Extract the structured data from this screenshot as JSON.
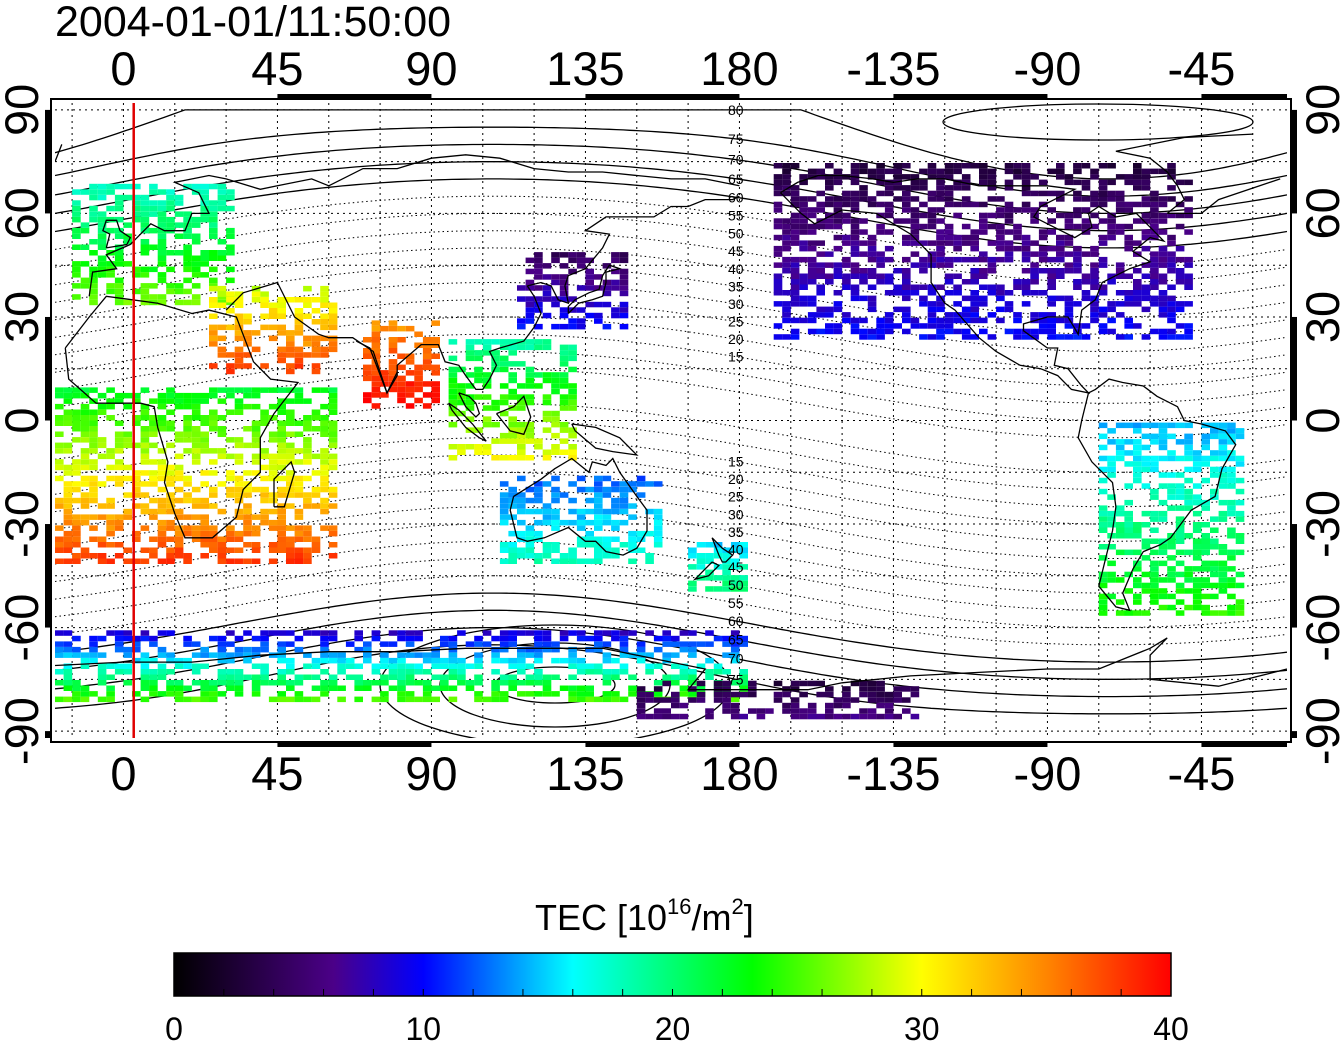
{
  "timestamp": "2004-01-01/11:50:00",
  "map": {
    "projection": "equirectangular",
    "lon_center_ticks": [
      "0",
      "45",
      "90",
      "135",
      "180",
      "-135",
      "-90",
      "-45"
    ],
    "lat_ticks_left": [
      "90",
      "60",
      "30",
      "0",
      "-30",
      "-60",
      "-90"
    ],
    "lat_ticks_right": [
      "90",
      "60",
      "30",
      "0",
      "-30",
      "-60",
      "-90"
    ],
    "x_range_deg": [
      -20,
      340
    ],
    "y_range_deg": [
      -92,
      92
    ],
    "grid": "dotted 15 deg",
    "terminator_longitude": 3,
    "terminator_color": "#e00000",
    "coastline_color": "#000000",
    "magnetic_latitude_labels_north": [
      "80",
      "75",
      "70",
      "65",
      "60",
      "55",
      "50",
      "45",
      "40",
      "35",
      "30",
      "25",
      "20",
      "15"
    ],
    "magnetic_latitude_labels_south": [
      "15",
      "20",
      "25",
      "30",
      "35",
      "40",
      "45",
      "50",
      "55",
      "60",
      "65",
      "70",
      "75"
    ]
  },
  "colorbar": {
    "title_prefix": "TEC  [10",
    "title_sup1": "16",
    "title_mid": "/m",
    "title_sup2": "2",
    "title_suffix": "]",
    "min": 0,
    "max": 40,
    "tick_labels": [
      "0",
      "10",
      "20",
      "30",
      "40"
    ],
    "colors": [
      "#000000",
      "#4b0088",
      "#0000ff",
      "#00ffff",
      "#00ff00",
      "#ffff00",
      "#ff0000"
    ]
  },
  "chart_data": {
    "type": "heatmap",
    "title": "2004-01-01/11:50:00",
    "variable": "TEC",
    "units": "10^16/m^2",
    "value_range": [
      0,
      40
    ],
    "regions": [
      {
        "lon": [
          -15,
          30
        ],
        "lat": [
          35,
          70
        ],
        "tec": [
          17,
          26
        ]
      },
      {
        "lon": [
          25,
          60
        ],
        "lat": [
          15,
          40
        ],
        "tec": [
          28,
          38
        ]
      },
      {
        "lon": [
          -20,
          60
        ],
        "lat": [
          -40,
          10
        ],
        "tec": [
          22,
          38
        ]
      },
      {
        "lon": [
          70,
          90
        ],
        "lat": [
          5,
          30
        ],
        "tec": [
          34,
          40
        ]
      },
      {
        "lon": [
          95,
          130
        ],
        "lat": [
          -10,
          25
        ],
        "tec": [
          18,
          30
        ]
      },
      {
        "lon": [
          115,
          145
        ],
        "lat": [
          28,
          50
        ],
        "tec": [
          4,
          10
        ]
      },
      {
        "lon": [
          110,
          155
        ],
        "lat": [
          -40,
          -15
        ],
        "tec": [
          12,
          18
        ]
      },
      {
        "lon": [
          165,
          180
        ],
        "lat": [
          -48,
          -35
        ],
        "tec": [
          15,
          20
        ]
      },
      {
        "lon": [
          -170,
          -50
        ],
        "lat": [
          25,
          75
        ],
        "tec": [
          3,
          10
        ]
      },
      {
        "lon": [
          -75,
          -35
        ],
        "lat": [
          -55,
          0
        ],
        "tec": [
          14,
          24
        ]
      },
      {
        "lon": [
          -20,
          180
        ],
        "lat": [
          -80,
          -60
        ],
        "tec": [
          8,
          25
        ]
      },
      {
        "lon": [
          150,
          230
        ],
        "lat": [
          -85,
          -75
        ],
        "tec": [
          3,
          6
        ]
      }
    ]
  }
}
